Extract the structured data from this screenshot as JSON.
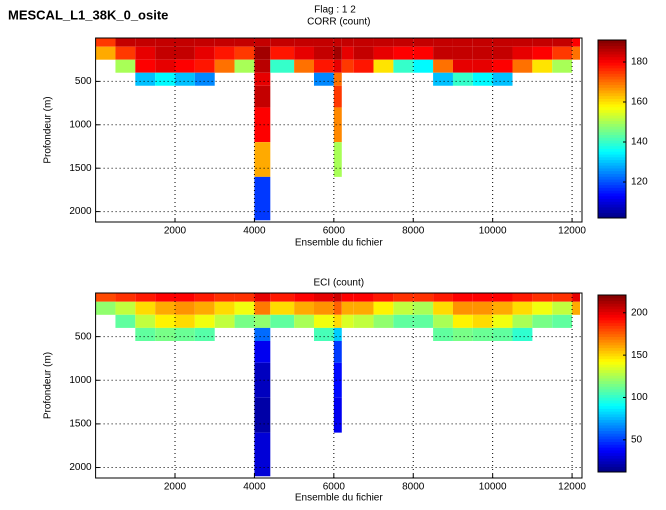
{
  "figure": {
    "title": "MESCAL_L1_38K_0_osite",
    "subtitle": "Flag : 1 2"
  },
  "chart_data": [
    {
      "type": "heatmap",
      "title": "CORR (count)",
      "xlabel": "Ensemble du fichier",
      "ylabel": "Profondeur (m)",
      "colormap": "jet",
      "grid": true,
      "y_reversed": true,
      "xlim": [
        0,
        12250
      ],
      "ylim": [
        0,
        2120
      ],
      "clim": [
        102,
        191
      ],
      "xticks": [
        2000,
        4000,
        6000,
        8000,
        10000,
        12000
      ],
      "yticks": [
        500,
        1000,
        1500,
        2000
      ],
      "cticks": [
        120,
        140,
        160,
        180
      ],
      "x_edges": [
        0,
        500,
        1000,
        1500,
        2000,
        2500,
        3000,
        3500,
        4000,
        4400,
        5000,
        5500,
        6000,
        6200,
        6500,
        7000,
        7500,
        8000,
        8500,
        9000,
        9500,
        10000,
        10500,
        11000,
        11500,
        12000,
        12200
      ],
      "y_edges": [
        0,
        100,
        250,
        400,
        550,
        800,
        1200,
        1600,
        2100
      ],
      "z": [
        [
          175,
          185,
          185,
          185,
          185,
          185,
          185,
          185,
          185,
          185,
          185,
          185,
          185,
          185,
          185,
          185,
          185,
          185,
          185,
          185,
          185,
          185,
          185,
          185,
          185,
          180
        ],
        [
          165,
          175,
          182,
          185,
          185,
          182,
          178,
          175,
          188,
          178,
          182,
          185,
          188,
          182,
          185,
          182,
          180,
          180,
          185,
          185,
          185,
          185,
          182,
          180,
          175,
          170
        ],
        [
          null,
          150,
          180,
          182,
          180,
          178,
          170,
          150,
          186,
          140,
          170,
          178,
          182,
          175,
          178,
          160,
          140,
          135,
          170,
          182,
          182,
          180,
          170,
          160,
          150,
          null
        ],
        [
          null,
          null,
          130,
          135,
          130,
          125,
          null,
          null,
          182,
          null,
          null,
          125,
          170,
          null,
          null,
          null,
          null,
          null,
          130,
          140,
          135,
          130,
          null,
          null,
          null,
          null
        ],
        [
          null,
          null,
          null,
          null,
          null,
          null,
          null,
          null,
          185,
          null,
          null,
          null,
          175,
          null,
          null,
          null,
          null,
          null,
          null,
          null,
          null,
          null,
          null,
          null,
          null,
          null
        ],
        [
          null,
          null,
          null,
          null,
          null,
          null,
          null,
          null,
          180,
          null,
          null,
          null,
          168,
          null,
          null,
          null,
          null,
          null,
          null,
          null,
          null,
          null,
          null,
          null,
          null,
          null
        ],
        [
          null,
          null,
          null,
          null,
          null,
          null,
          null,
          null,
          165,
          null,
          null,
          null,
          150,
          null,
          null,
          null,
          null,
          null,
          null,
          null,
          null,
          null,
          null,
          null,
          null,
          null
        ],
        [
          null,
          null,
          null,
          null,
          null,
          null,
          null,
          null,
          118,
          null,
          null,
          null,
          null,
          null,
          null,
          null,
          null,
          null,
          null,
          null,
          null,
          null,
          null,
          null,
          null,
          null
        ]
      ]
    },
    {
      "type": "heatmap",
      "title": "ECI (count)",
      "xlabel": "Ensemble du fichier",
      "ylabel": "Profondeur (m)",
      "colormap": "jet",
      "grid": true,
      "y_reversed": true,
      "xlim": [
        0,
        12250
      ],
      "ylim": [
        0,
        2120
      ],
      "clim": [
        12,
        221
      ],
      "xticks": [
        2000,
        4000,
        6000,
        8000,
        10000,
        12000
      ],
      "yticks": [
        500,
        1000,
        1500,
        2000
      ],
      "cticks": [
        50,
        100,
        150,
        200
      ],
      "x_edges": [
        0,
        500,
        1000,
        1500,
        2000,
        2500,
        3000,
        3500,
        4000,
        4400,
        5000,
        5500,
        6000,
        6200,
        6500,
        7000,
        7500,
        8000,
        8500,
        9000,
        9500,
        10000,
        10500,
        11000,
        11500,
        12000,
        12200
      ],
      "y_edges": [
        0,
        100,
        250,
        400,
        550,
        800,
        1200,
        1600,
        2100
      ],
      "z": [
        [
          180,
          185,
          190,
          195,
          195,
          190,
          185,
          185,
          200,
          190,
          195,
          200,
          205,
          195,
          195,
          190,
          185,
          185,
          190,
          195,
          195,
          195,
          190,
          185,
          185,
          200
        ],
        [
          120,
          130,
          150,
          160,
          165,
          160,
          150,
          140,
          170,
          150,
          160,
          165,
          175,
          160,
          160,
          145,
          130,
          125,
          150,
          165,
          165,
          160,
          150,
          140,
          130,
          160
        ],
        [
          null,
          110,
          130,
          145,
          150,
          140,
          130,
          115,
          120,
          110,
          125,
          140,
          150,
          135,
          130,
          120,
          110,
          110,
          125,
          145,
          150,
          140,
          125,
          115,
          110,
          null
        ],
        [
          null,
          null,
          110,
          115,
          112,
          108,
          null,
          null,
          60,
          null,
          null,
          105,
          80,
          null,
          null,
          null,
          null,
          null,
          110,
          115,
          112,
          110,
          100,
          null,
          null,
          null
        ],
        [
          null,
          null,
          null,
          null,
          null,
          null,
          null,
          null,
          35,
          null,
          null,
          null,
          50,
          null,
          null,
          null,
          null,
          null,
          null,
          null,
          null,
          null,
          null,
          null,
          null,
          null
        ],
        [
          null,
          null,
          null,
          null,
          null,
          null,
          null,
          null,
          25,
          null,
          null,
          null,
          40,
          null,
          null,
          null,
          null,
          null,
          null,
          null,
          null,
          null,
          null,
          null,
          null,
          null
        ],
        [
          null,
          null,
          null,
          null,
          null,
          null,
          null,
          null,
          20,
          null,
          null,
          null,
          35,
          null,
          null,
          null,
          null,
          null,
          null,
          null,
          null,
          null,
          null,
          null,
          null,
          null
        ],
        [
          null,
          null,
          null,
          null,
          null,
          null,
          null,
          null,
          30,
          null,
          null,
          null,
          null,
          null,
          null,
          null,
          null,
          null,
          null,
          null,
          null,
          null,
          null,
          null,
          null,
          null
        ]
      ]
    }
  ]
}
